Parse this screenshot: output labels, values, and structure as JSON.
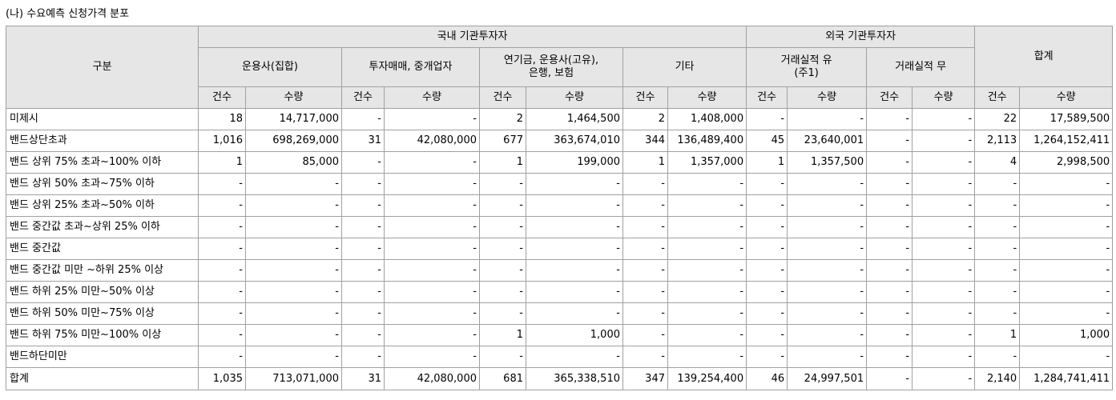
{
  "title": "(나) 수요예측 신청가격 분포",
  "header": {
    "category": "구분",
    "group_domestic": "국내 기관투자자",
    "group_foreign": "외국 기관투자자",
    "total": "합계",
    "sub": [
      "운용사(집합)",
      "투자매매, 중개업자",
      "연기금, 운용사(고유),\n은행, 보험",
      "기타",
      "거래실적 유\n(주1)",
      "거래실적 무"
    ],
    "count": "건수",
    "qty": "수량"
  },
  "rows": [
    {
      "label": "미제시",
      "cells": [
        "18",
        "14,717,000",
        "-",
        "-",
        "2",
        "1,464,500",
        "2",
        "1,408,000",
        "-",
        "-",
        "-",
        "-",
        "22",
        "17,589,500"
      ]
    },
    {
      "label": "밴드상단초과",
      "cells": [
        "1,016",
        "698,269,000",
        "31",
        "42,080,000",
        "677",
        "363,674,010",
        "344",
        "136,489,400",
        "45",
        "23,640,001",
        "-",
        "-",
        "2,113",
        "1,264,152,411"
      ]
    },
    {
      "label": "밴드 상위 75% 초과~100% 이하",
      "cells": [
        "1",
        "85,000",
        "-",
        "-",
        "1",
        "199,000",
        "1",
        "1,357,000",
        "1",
        "1,357,500",
        "-",
        "-",
        "4",
        "2,998,500"
      ]
    },
    {
      "label": "밴드 상위 50% 초과~75% 이하",
      "cells": [
        "-",
        "-",
        "-",
        "-",
        "-",
        "-",
        "-",
        "-",
        "-",
        "-",
        "-",
        "-",
        "-",
        "-"
      ]
    },
    {
      "label": "밴드 상위 25% 초과~50% 이하",
      "cells": [
        "-",
        "-",
        "-",
        "-",
        "-",
        "-",
        "-",
        "-",
        "-",
        "-",
        "-",
        "-",
        "-",
        "-"
      ]
    },
    {
      "label": "밴드 중간값 초과~상위 25% 이하",
      "cells": [
        "-",
        "-",
        "-",
        "-",
        "-",
        "-",
        "-",
        "-",
        "-",
        "-",
        "-",
        "-",
        "-",
        "-"
      ]
    },
    {
      "label": "밴드 중간값",
      "cells": [
        "-",
        "-",
        "-",
        "-",
        "-",
        "-",
        "-",
        "-",
        "-",
        "-",
        "-",
        "-",
        "-",
        "-"
      ]
    },
    {
      "label": "밴드 중간값 미만 ~하위 25% 이상",
      "cells": [
        "-",
        "-",
        "-",
        "-",
        "-",
        "-",
        "-",
        "-",
        "-",
        "-",
        "-",
        "-",
        "-",
        "-"
      ]
    },
    {
      "label": "밴드 하위 25% 미만~50% 이상",
      "cells": [
        "-",
        "-",
        "-",
        "-",
        "-",
        "-",
        "-",
        "-",
        "-",
        "-",
        "-",
        "-",
        "-",
        "-"
      ]
    },
    {
      "label": "밴드 하위 50% 미만~75% 이상",
      "cells": [
        "-",
        "-",
        "-",
        "-",
        "-",
        "-",
        "-",
        "-",
        "-",
        "-",
        "-",
        "-",
        "-",
        "-"
      ]
    },
    {
      "label": "밴드 하위 75% 미만~100% 이상",
      "cells": [
        "-",
        "-",
        "-",
        "-",
        "1",
        "1,000",
        "-",
        "-",
        "-",
        "-",
        "-",
        "-",
        "1",
        "1,000"
      ]
    },
    {
      "label": "밴드하단미만",
      "cells": [
        "-",
        "-",
        "-",
        "-",
        "-",
        "-",
        "-",
        "-",
        "-",
        "-",
        "-",
        "-",
        "-",
        "-"
      ]
    },
    {
      "label": "합계",
      "cells": [
        "1,035",
        "713,071,000",
        "31",
        "42,080,000",
        "681",
        "365,338,510",
        "347",
        "139,254,400",
        "46",
        "24,997,501",
        "-",
        "-",
        "2,140",
        "1,284,741,411"
      ]
    }
  ]
}
